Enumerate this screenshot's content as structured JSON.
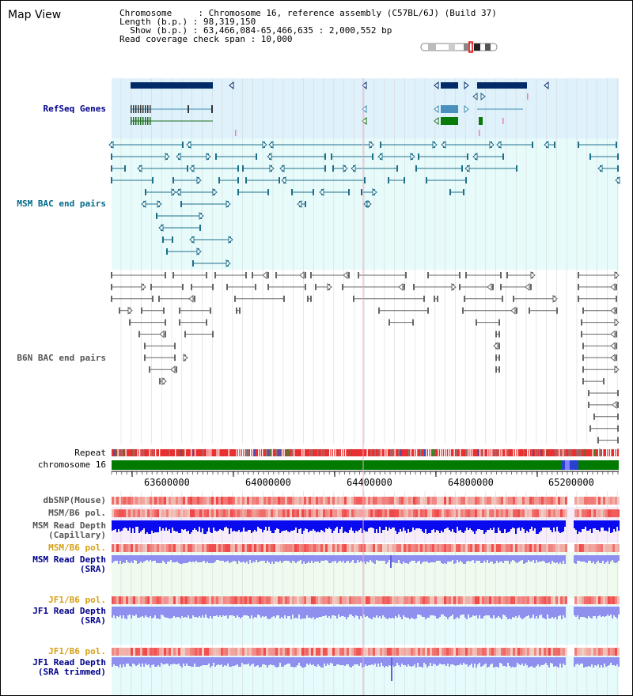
{
  "title": "Map View",
  "header": {
    "line1": "Chromosome     : Chromosome 16, reference assembly (C57BL/6J) (Build 37)",
    "line2": "Length (b.p.) : 98,319,150",
    "line3": "  Show (b.p.) : 63,466,084-65,466,635 : 2,000,552 bp",
    "line4": "Read coverage check span : 10,000"
  },
  "tracks": {
    "refseq": "RefSeq Genes",
    "msm_bac": "MSM BAC end pairs",
    "b6n_bac": "B6N BAC end pairs",
    "repeat": "Repeat",
    "chromosome": "chromosome 16",
    "dbsnp": "dbSNP(Mouse)",
    "msm_b6_pol_1": "MSM/B6 pol.",
    "msm_read_depth_cap": "MSM Read Depth\n(Capillary)",
    "msm_b6_pol_2": "MSM/B6 pol.",
    "msm_read_depth_sra": "MSM Read Depth\n(SRA)",
    "jf1_b6_pol_1": "JF1/B6 pol.",
    "jf1_read_depth_sra": "JF1 Read Depth\n(SRA)",
    "jf1_b6_pol_2": "JF1/B6 pol.",
    "jf1_read_depth_trim": "JF1 Read Depth\n(SRA trimmed)"
  },
  "axis": {
    "ticks": [
      "63600000",
      "64000000",
      "64400000",
      "64800000",
      "65200000"
    ]
  },
  "colors": {
    "refseq_bg": "#dff1fb",
    "bac_bg": "#e8fbfb",
    "gene_navy": "#002b66",
    "msm_feature": "#1f6f8b",
    "b6n_feature": "#666666",
    "chrom_green": "#007a00",
    "depth_blue": "#0a0aee",
    "depth_lightblue": "#8f8ff0",
    "pol_red": "#f05050",
    "lavender_bg": "#f6ecfa",
    "mint_bg": "#eefbee",
    "cyan_bg": "#e6fbfb"
  }
}
